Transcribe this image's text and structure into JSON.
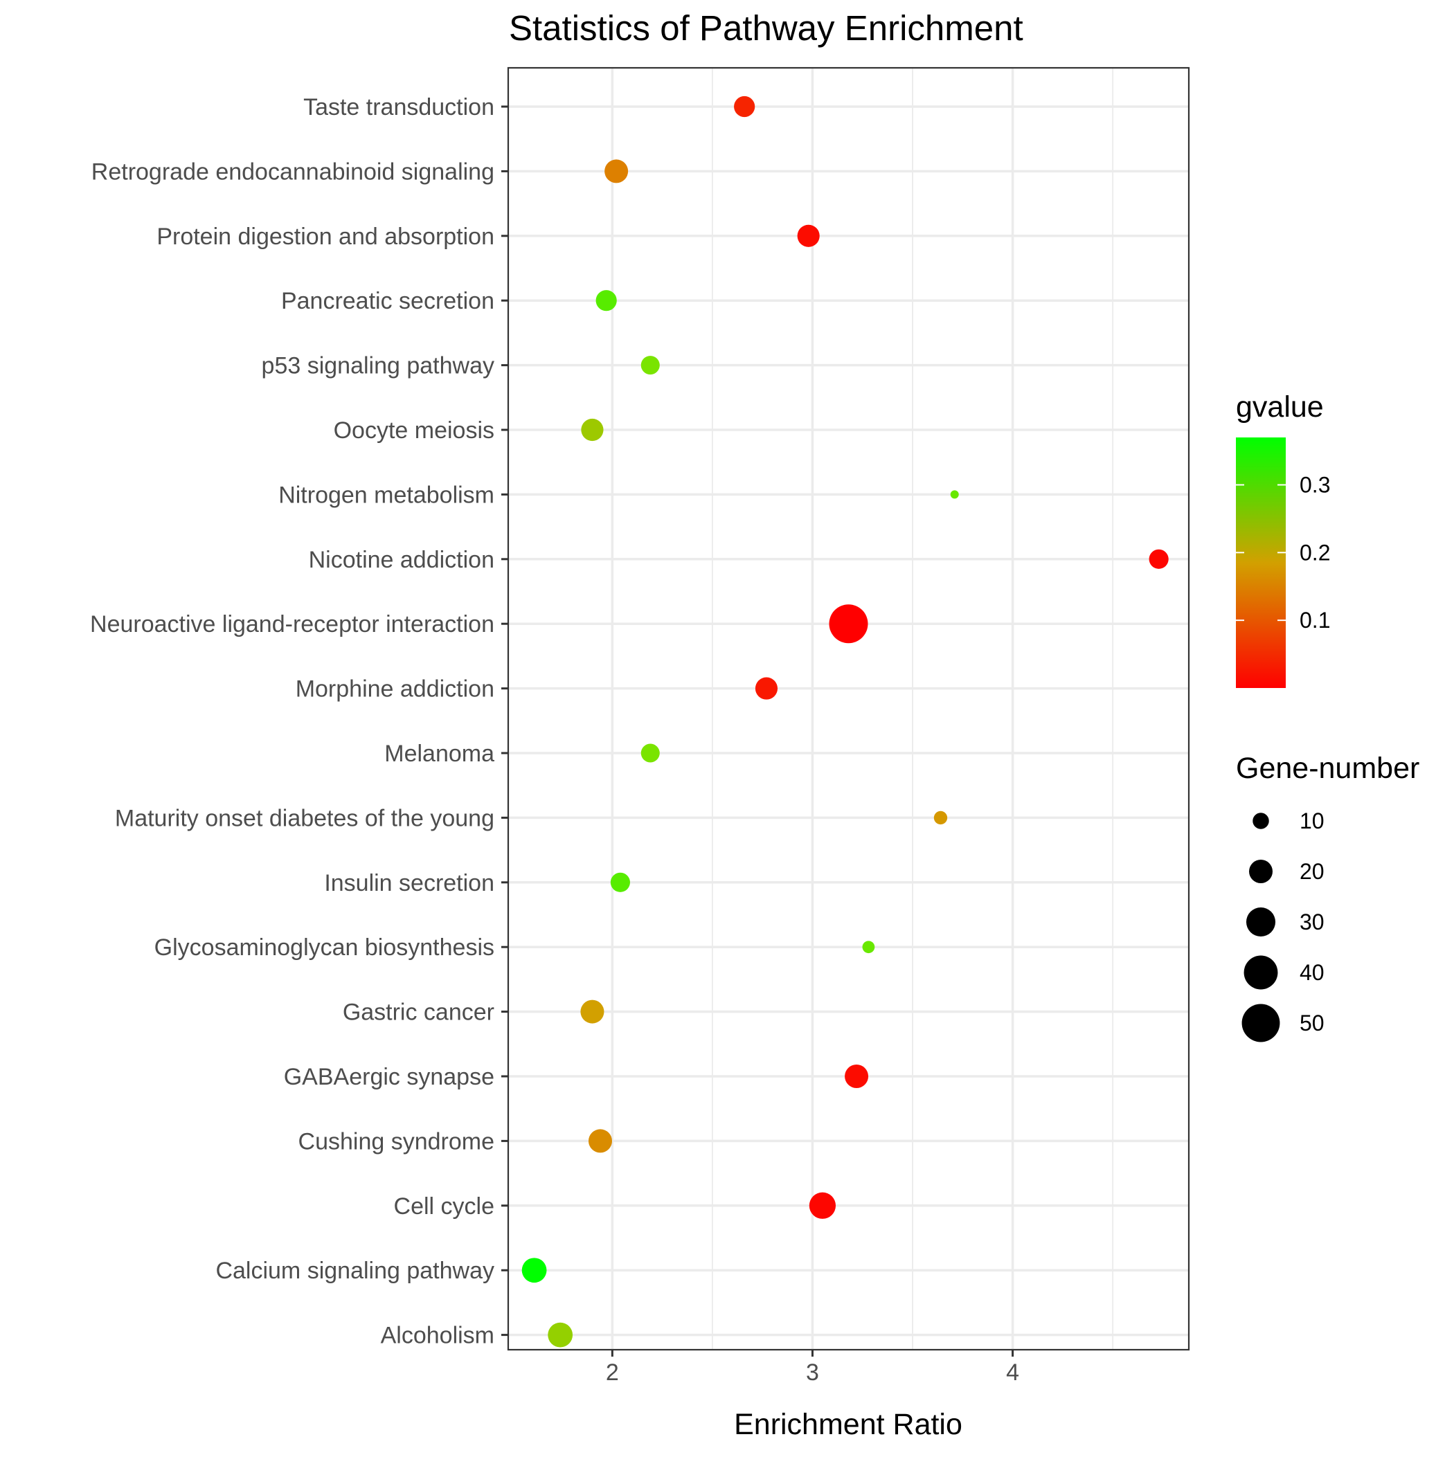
{
  "chart_data": {
    "type": "scatter",
    "title": "Statistics of Pathway Enrichment",
    "xlabel": "Enrichment Ratio",
    "ylabel": "",
    "xlim": [
      1.48,
      4.88
    ],
    "x_ticks": [
      2,
      3,
      4
    ],
    "grid": true,
    "points": [
      {
        "pathway": "Taste transduction",
        "x": 2.66,
        "gvalue": 0.03,
        "gene_number": 16
      },
      {
        "pathway": "Retrograde endocannabinoid signaling",
        "x": 2.02,
        "gvalue": 0.12,
        "gene_number": 20
      },
      {
        "pathway": "Protein digestion and absorption",
        "x": 2.98,
        "gvalue": 0.01,
        "gene_number": 18
      },
      {
        "pathway": "Pancreatic secretion",
        "x": 1.97,
        "gvalue": 0.32,
        "gene_number": 16
      },
      {
        "pathway": "p53 signaling pathway",
        "x": 2.19,
        "gvalue": 0.3,
        "gene_number": 13
      },
      {
        "pathway": "Oocyte meiosis",
        "x": 1.9,
        "gvalue": 0.26,
        "gene_number": 18
      },
      {
        "pathway": "Nitrogen metabolism",
        "x": 3.71,
        "gvalue": 0.31,
        "gene_number": 3
      },
      {
        "pathway": "Nicotine addiction",
        "x": 4.73,
        "gvalue": 0.005,
        "gene_number": 14
      },
      {
        "pathway": "Neuroactive ligand-receptor interaction",
        "x": 3.18,
        "gvalue": 0.0,
        "gene_number": 52
      },
      {
        "pathway": "Morphine addiction",
        "x": 2.77,
        "gvalue": 0.02,
        "gene_number": 18
      },
      {
        "pathway": "Melanoma",
        "x": 2.19,
        "gvalue": 0.3,
        "gene_number": 13
      },
      {
        "pathway": "Maturity onset diabetes of the young",
        "x": 3.64,
        "gvalue": 0.18,
        "gene_number": 7
      },
      {
        "pathway": "Insulin secretion",
        "x": 2.04,
        "gvalue": 0.32,
        "gene_number": 14
      },
      {
        "pathway": "Glycosaminoglycan biosynthesis",
        "x": 3.28,
        "gvalue": 0.31,
        "gene_number": 6
      },
      {
        "pathway": "Gastric cancer",
        "x": 1.9,
        "gvalue": 0.2,
        "gene_number": 20
      },
      {
        "pathway": "GABAergic synapse",
        "x": 3.22,
        "gvalue": 0.01,
        "gene_number": 20
      },
      {
        "pathway": "Cushing syndrome",
        "x": 1.94,
        "gvalue": 0.15,
        "gene_number": 20
      },
      {
        "pathway": "Cell cycle",
        "x": 3.05,
        "gvalue": 0.005,
        "gene_number": 25
      },
      {
        "pathway": "Calcium signaling pathway",
        "x": 1.61,
        "gvalue": 0.37,
        "gene_number": 22
      },
      {
        "pathway": "Alcoholism",
        "x": 1.74,
        "gvalue": 0.27,
        "gene_number": 22
      }
    ],
    "color_legend": {
      "title": "gvalue",
      "range": [
        0.0,
        0.37
      ],
      "ticks": [
        0.1,
        0.2,
        0.3
      ],
      "tick_labels": [
        "0.1",
        "0.2",
        "0.3"
      ],
      "low_color": "#ff0000",
      "mid_color": "#e07800",
      "high_color": "#00ff00"
    },
    "size_legend": {
      "title": "Gene-number",
      "values": [
        10,
        20,
        30,
        40,
        50
      ],
      "labels": [
        "10",
        "20",
        "30",
        "40",
        "50"
      ]
    },
    "legend_position": "right",
    "point_color_scale": "gradient red to green",
    "size_range_data": [
      3,
      52
    ]
  }
}
